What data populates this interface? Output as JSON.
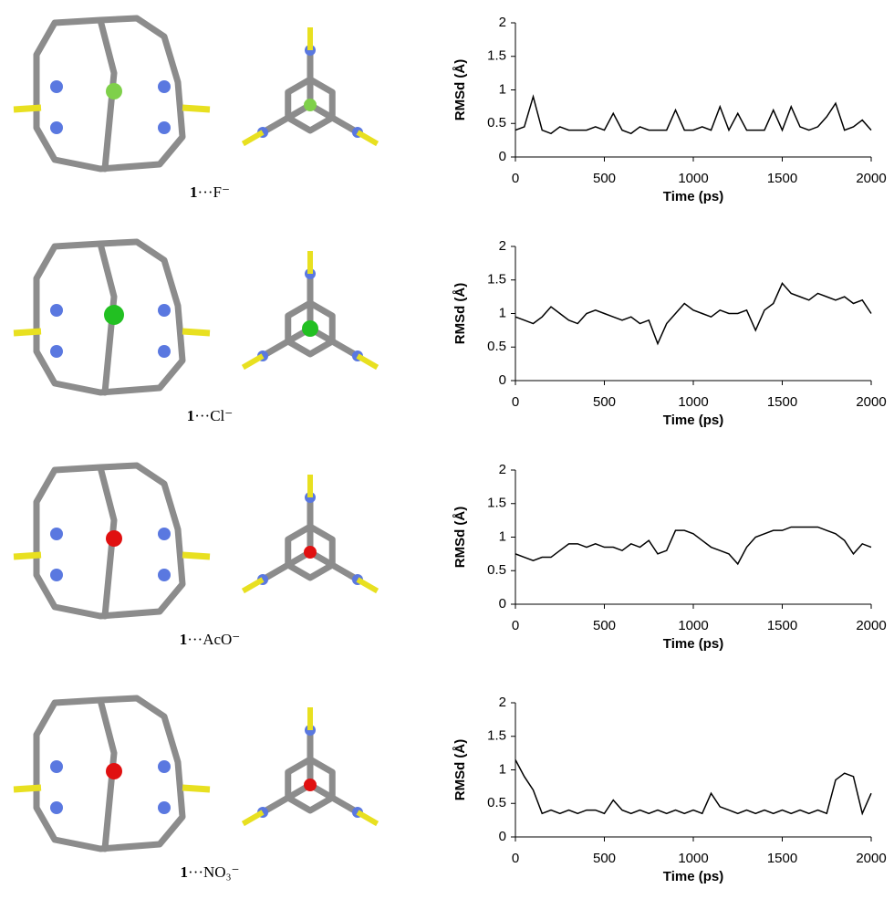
{
  "molecule_labels": [
    {
      "compound": "1",
      "anion": "···F⁻"
    },
    {
      "compound": "1",
      "anion": "···Cl⁻"
    },
    {
      "compound": "1",
      "anion": "···AcO⁻"
    },
    {
      "compound": "1",
      "anion": "···NO₃⁻"
    }
  ],
  "chart_data": [
    {
      "type": "line",
      "xlabel": "Time (ps)",
      "ylabel": "RMSd (Å)",
      "color": "#000000",
      "x": [
        0,
        50,
        100,
        150,
        200,
        250,
        300,
        350,
        400,
        450,
        500,
        550,
        600,
        650,
        700,
        750,
        800,
        850,
        900,
        950,
        1000,
        1050,
        1100,
        1150,
        1200,
        1250,
        1300,
        1350,
        1400,
        1450,
        1500,
        1550,
        1600,
        1650,
        1700,
        1750,
        1800,
        1850,
        1900,
        1950,
        2000
      ],
      "values": [
        0.4,
        0.45,
        0.9,
        0.4,
        0.35,
        0.45,
        0.4,
        0.4,
        0.4,
        0.45,
        0.4,
        0.65,
        0.4,
        0.35,
        0.45,
        0.4,
        0.4,
        0.4,
        0.7,
        0.4,
        0.4,
        0.45,
        0.4,
        0.75,
        0.4,
        0.65,
        0.4,
        0.4,
        0.4,
        0.7,
        0.4,
        0.75,
        0.45,
        0.4,
        0.45,
        0.6,
        0.8,
        0.4,
        0.45,
        0.55,
        0.4
      ],
      "xlim": [
        0,
        2000
      ],
      "xticks": [
        0,
        500,
        1000,
        1500,
        2000
      ],
      "ylim": [
        0,
        2
      ],
      "yticks": [
        0,
        0.5,
        1,
        1.5,
        2
      ]
    },
    {
      "type": "line",
      "xlabel": "Time (ps)",
      "ylabel": "RMSd (Å)",
      "color": "#000000",
      "x": [
        0,
        50,
        100,
        150,
        200,
        250,
        300,
        350,
        400,
        450,
        500,
        550,
        600,
        650,
        700,
        750,
        800,
        850,
        900,
        950,
        1000,
        1050,
        1100,
        1150,
        1200,
        1250,
        1300,
        1350,
        1400,
        1450,
        1500,
        1550,
        1600,
        1650,
        1700,
        1750,
        1800,
        1850,
        1900,
        1950,
        2000
      ],
      "values": [
        0.95,
        0.9,
        0.85,
        0.95,
        1.1,
        1.0,
        0.9,
        0.85,
        1.0,
        1.05,
        1.0,
        0.95,
        0.9,
        0.95,
        0.85,
        0.9,
        0.55,
        0.85,
        1.0,
        1.15,
        1.05,
        1.0,
        0.95,
        1.05,
        1.0,
        1.0,
        1.05,
        0.75,
        1.05,
        1.15,
        1.45,
        1.3,
        1.25,
        1.2,
        1.3,
        1.25,
        1.2,
        1.25,
        1.15,
        1.2,
        1.0
      ],
      "xlim": [
        0,
        2000
      ],
      "xticks": [
        0,
        500,
        1000,
        1500,
        2000
      ],
      "ylim": [
        0,
        2
      ],
      "yticks": [
        0,
        0.5,
        1,
        1.5,
        2
      ]
    },
    {
      "type": "line",
      "xlabel": "Time (ps)",
      "ylabel": "RMSd (Å)",
      "color": "#000000",
      "x": [
        0,
        50,
        100,
        150,
        200,
        250,
        300,
        350,
        400,
        450,
        500,
        550,
        600,
        650,
        700,
        750,
        800,
        850,
        900,
        950,
        1000,
        1050,
        1100,
        1150,
        1200,
        1250,
        1300,
        1350,
        1400,
        1450,
        1500,
        1550,
        1600,
        1650,
        1700,
        1750,
        1800,
        1850,
        1900,
        1950,
        2000
      ],
      "values": [
        0.75,
        0.7,
        0.65,
        0.7,
        0.7,
        0.8,
        0.9,
        0.9,
        0.85,
        0.9,
        0.85,
        0.85,
        0.8,
        0.9,
        0.85,
        0.95,
        0.75,
        0.8,
        1.1,
        1.1,
        1.05,
        0.95,
        0.85,
        0.8,
        0.75,
        0.6,
        0.85,
        1.0,
        1.05,
        1.1,
        1.1,
        1.15,
        1.15,
        1.15,
        1.15,
        1.1,
        1.05,
        0.95,
        0.75,
        0.9,
        0.85
      ],
      "xlim": [
        0,
        2000
      ],
      "xticks": [
        0,
        500,
        1000,
        1500,
        2000
      ],
      "ylim": [
        0,
        2
      ],
      "yticks": [
        0,
        0.5,
        1,
        1.5,
        2
      ]
    },
    {
      "type": "line",
      "xlabel": "Time (ps)",
      "ylabel": "RMSd (Å)",
      "color": "#000000",
      "x": [
        0,
        50,
        100,
        150,
        200,
        250,
        300,
        350,
        400,
        450,
        500,
        550,
        600,
        650,
        700,
        750,
        800,
        850,
        900,
        950,
        1000,
        1050,
        1100,
        1150,
        1200,
        1250,
        1300,
        1350,
        1400,
        1450,
        1500,
        1550,
        1600,
        1650,
        1700,
        1750,
        1800,
        1850,
        1900,
        1950,
        2000
      ],
      "values": [
        1.15,
        0.9,
        0.7,
        0.35,
        0.4,
        0.35,
        0.4,
        0.35,
        0.4,
        0.4,
        0.35,
        0.55,
        0.4,
        0.35,
        0.4,
        0.35,
        0.4,
        0.35,
        0.4,
        0.35,
        0.4,
        0.35,
        0.65,
        0.45,
        0.4,
        0.35,
        0.4,
        0.35,
        0.4,
        0.35,
        0.4,
        0.35,
        0.4,
        0.35,
        0.4,
        0.35,
        0.85,
        0.95,
        0.9,
        0.35,
        0.65
      ],
      "xlim": [
        0,
        2000
      ],
      "xticks": [
        0,
        500,
        1000,
        1500,
        2000
      ],
      "ylim": [
        0,
        2
      ],
      "yticks": [
        0,
        0.5,
        1,
        1.5,
        2
      ]
    }
  ]
}
